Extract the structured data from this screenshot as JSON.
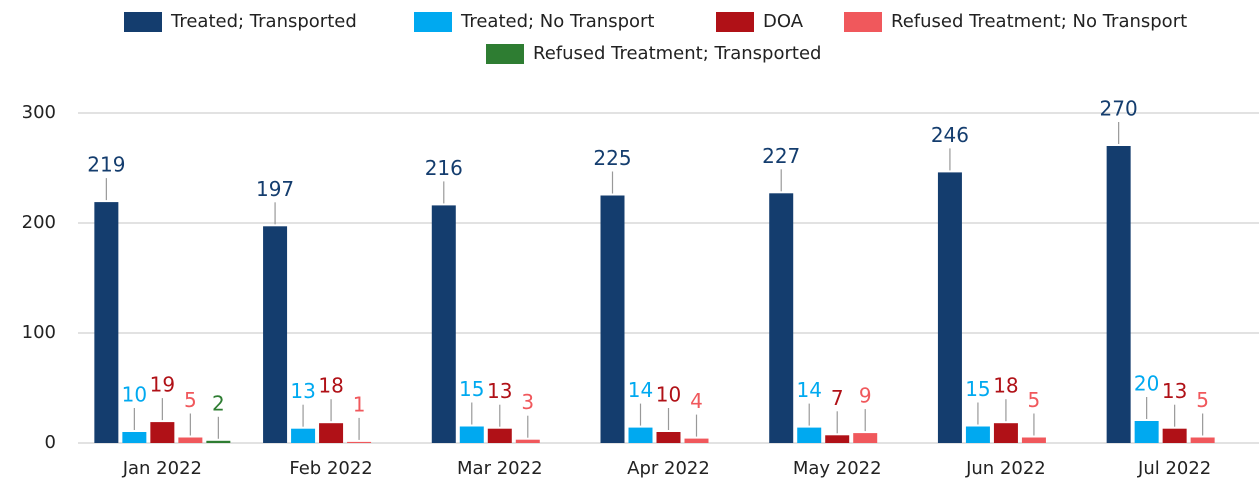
{
  "chart_data": {
    "type": "bar",
    "categories": [
      "Jan 2022",
      "Feb 2022",
      "Mar 2022",
      "Apr 2022",
      "May 2022",
      "Jun 2022",
      "Jul 2022"
    ],
    "series": [
      {
        "name": "Treated; Transported",
        "color": "#143d6e",
        "values": [
          219,
          197,
          216,
          225,
          227,
          246,
          270
        ]
      },
      {
        "name": "Treated; No Transport",
        "color": "#00a9f0",
        "values": [
          10,
          13,
          15,
          14,
          14,
          15,
          20
        ]
      },
      {
        "name": "DOA",
        "color": "#b01117",
        "values": [
          19,
          18,
          13,
          10,
          7,
          18,
          13
        ]
      },
      {
        "name": "Refused Treatment; No Transport",
        "color": "#f0585c",
        "values": [
          5,
          1,
          3,
          4,
          9,
          5,
          5
        ]
      },
      {
        "name": "Refused Treatment; Transported",
        "color": "#2e7d32",
        "values": [
          2,
          null,
          null,
          null,
          null,
          null,
          null
        ]
      }
    ],
    "ylim": [
      0,
      300
    ],
    "yticks": [
      0,
      100,
      200,
      300
    ],
    "grid": true,
    "legend": "top"
  }
}
